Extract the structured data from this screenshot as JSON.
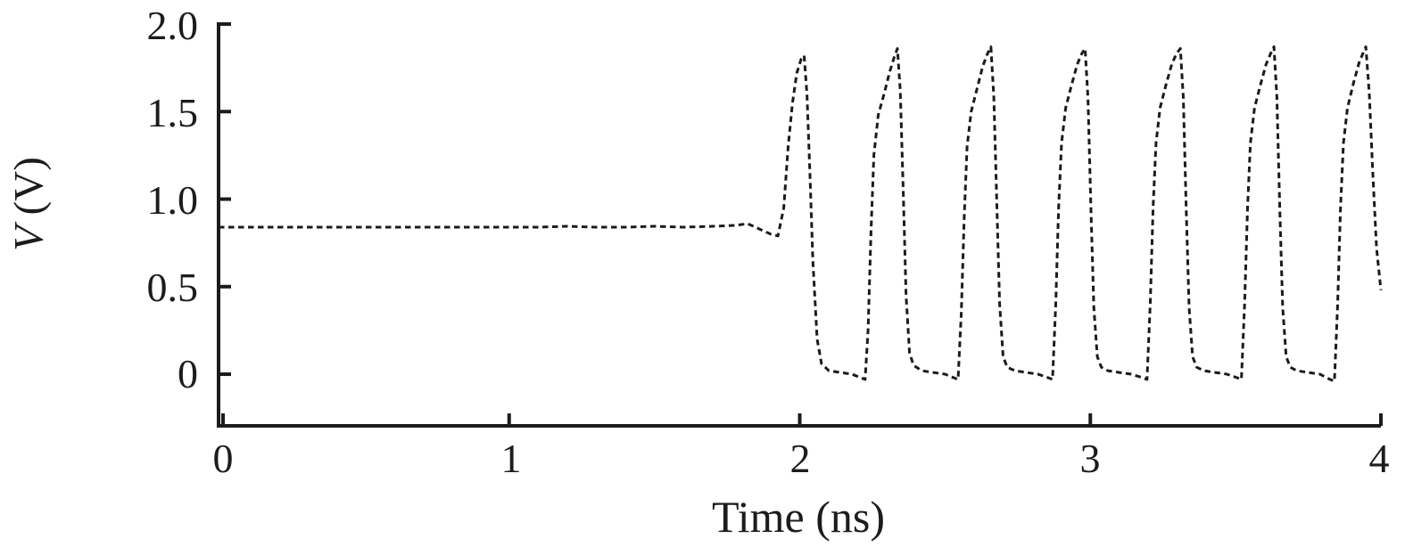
{
  "figure": {
    "background": "#ffffff",
    "accent_color": "#1b1b1b"
  },
  "chart_data": {
    "type": "line",
    "title": "",
    "xlabel": "Time (ns)",
    "ylabel": "V (V)",
    "ylabel_variable": "V",
    "ylabel_unit": "(V)",
    "xlim": [
      0,
      4
    ],
    "ylim": [
      -0.295,
      2.0
    ],
    "x_ticks": [
      0,
      1,
      2,
      3,
      4
    ],
    "x_tick_labels": [
      "0",
      "1",
      "2",
      "3",
      "4"
    ],
    "y_ticks": [
      0,
      0.5,
      1.0,
      1.5,
      2.0
    ],
    "y_tick_labels": [
      "0",
      "0.5",
      "1.0",
      "1.5",
      "2.0"
    ],
    "grid": false,
    "legend": "none",
    "line_style": "dashed",
    "line_color": "#1b1b1b",
    "description": "Voltage waveform: constant ~0.84 V until ~1.9 ns, then oscillation between ~0 V and ~1.86 V with period ~0.32 ns",
    "series": [
      {
        "name": "V",
        "points": [
          [
            0.0,
            0.84
          ],
          [
            0.1,
            0.84
          ],
          [
            0.2,
            0.84
          ],
          [
            0.3,
            0.84
          ],
          [
            0.4,
            0.84
          ],
          [
            0.5,
            0.84
          ],
          [
            0.6,
            0.84
          ],
          [
            0.7,
            0.84
          ],
          [
            0.8,
            0.84
          ],
          [
            0.9,
            0.84
          ],
          [
            1.0,
            0.84
          ],
          [
            1.1,
            0.84
          ],
          [
            1.2,
            0.845
          ],
          [
            1.3,
            0.84
          ],
          [
            1.4,
            0.84
          ],
          [
            1.5,
            0.845
          ],
          [
            1.6,
            0.84
          ],
          [
            1.7,
            0.845
          ],
          [
            1.78,
            0.85
          ],
          [
            1.82,
            0.86
          ],
          [
            1.86,
            0.83
          ],
          [
            1.9,
            0.8
          ],
          [
            1.925,
            0.79
          ],
          [
            1.945,
            0.95
          ],
          [
            1.96,
            1.3
          ],
          [
            1.975,
            1.55
          ],
          [
            1.99,
            1.72
          ],
          [
            2.005,
            1.8
          ],
          [
            2.015,
            1.82
          ],
          [
            2.025,
            1.6
          ],
          [
            2.035,
            1.15
          ],
          [
            2.045,
            0.65
          ],
          [
            2.06,
            0.2
          ],
          [
            2.075,
            0.06
          ],
          [
            2.1,
            0.02
          ],
          [
            2.14,
            0.01
          ],
          [
            2.18,
            0.0
          ],
          [
            2.21,
            -0.02
          ],
          [
            2.225,
            -0.03
          ],
          [
            2.235,
            0.25
          ],
          [
            2.245,
            0.8
          ],
          [
            2.255,
            1.25
          ],
          [
            2.27,
            1.48
          ],
          [
            2.29,
            1.6
          ],
          [
            2.31,
            1.73
          ],
          [
            2.325,
            1.81
          ],
          [
            2.336,
            1.86
          ],
          [
            2.346,
            1.62
          ],
          [
            2.356,
            1.05
          ],
          [
            2.366,
            0.45
          ],
          [
            2.378,
            0.12
          ],
          [
            2.392,
            0.05
          ],
          [
            2.42,
            0.02
          ],
          [
            2.46,
            0.01
          ],
          [
            2.5,
            0.0
          ],
          [
            2.53,
            -0.02
          ],
          [
            2.545,
            -0.03
          ],
          [
            2.556,
            0.35
          ],
          [
            2.566,
            0.9
          ],
          [
            2.576,
            1.3
          ],
          [
            2.59,
            1.5
          ],
          [
            2.61,
            1.63
          ],
          [
            2.63,
            1.76
          ],
          [
            2.646,
            1.83
          ],
          [
            2.658,
            1.87
          ],
          [
            2.668,
            1.58
          ],
          [
            2.678,
            0.98
          ],
          [
            2.688,
            0.4
          ],
          [
            2.7,
            0.1
          ],
          [
            2.714,
            0.04
          ],
          [
            2.74,
            0.02
          ],
          [
            2.78,
            0.01
          ],
          [
            2.82,
            0.0
          ],
          [
            2.855,
            -0.02
          ],
          [
            2.87,
            -0.03
          ],
          [
            2.881,
            0.4
          ],
          [
            2.891,
            0.95
          ],
          [
            2.901,
            1.32
          ],
          [
            2.915,
            1.52
          ],
          [
            2.935,
            1.65
          ],
          [
            2.955,
            1.77
          ],
          [
            2.97,
            1.83
          ],
          [
            2.982,
            1.86
          ],
          [
            2.992,
            1.58
          ],
          [
            3.002,
            0.95
          ],
          [
            3.012,
            0.38
          ],
          [
            3.024,
            0.1
          ],
          [
            3.038,
            0.04
          ],
          [
            3.06,
            0.02
          ],
          [
            3.1,
            0.01
          ],
          [
            3.14,
            0.0
          ],
          [
            3.18,
            -0.02
          ],
          [
            3.195,
            -0.03
          ],
          [
            3.206,
            0.4
          ],
          [
            3.216,
            0.95
          ],
          [
            3.226,
            1.32
          ],
          [
            3.24,
            1.52
          ],
          [
            3.26,
            1.65
          ],
          [
            3.28,
            1.77
          ],
          [
            3.296,
            1.83
          ],
          [
            3.31,
            1.86
          ],
          [
            3.32,
            1.58
          ],
          [
            3.33,
            0.95
          ],
          [
            3.34,
            0.38
          ],
          [
            3.352,
            0.1
          ],
          [
            3.366,
            0.04
          ],
          [
            3.39,
            0.02
          ],
          [
            3.43,
            0.01
          ],
          [
            3.47,
            0.0
          ],
          [
            3.505,
            -0.02
          ],
          [
            3.52,
            -0.03
          ],
          [
            3.531,
            0.4
          ],
          [
            3.541,
            0.95
          ],
          [
            3.551,
            1.32
          ],
          [
            3.565,
            1.52
          ],
          [
            3.585,
            1.65
          ],
          [
            3.605,
            1.77
          ],
          [
            3.62,
            1.83
          ],
          [
            3.632,
            1.87
          ],
          [
            3.642,
            1.58
          ],
          [
            3.652,
            0.95
          ],
          [
            3.662,
            0.38
          ],
          [
            3.674,
            0.1
          ],
          [
            3.688,
            0.04
          ],
          [
            3.71,
            0.02
          ],
          [
            3.75,
            0.01
          ],
          [
            3.79,
            0.0
          ],
          [
            3.825,
            -0.03
          ],
          [
            3.84,
            -0.04
          ],
          [
            3.851,
            0.4
          ],
          [
            3.861,
            0.95
          ],
          [
            3.871,
            1.32
          ],
          [
            3.885,
            1.52
          ],
          [
            3.905,
            1.66
          ],
          [
            3.925,
            1.78
          ],
          [
            3.94,
            1.84
          ],
          [
            3.948,
            1.87
          ],
          [
            3.96,
            1.6
          ],
          [
            3.972,
            1.15
          ],
          [
            3.985,
            0.72
          ],
          [
            4.0,
            0.48
          ]
        ]
      }
    ]
  }
}
